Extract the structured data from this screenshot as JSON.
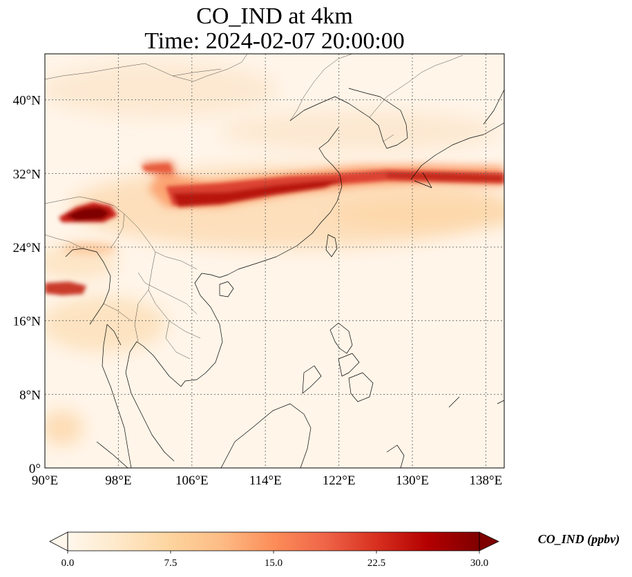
{
  "title": {
    "line1": "CO_IND at 4km",
    "line2": "Time: 2024-02-07 20:00:00"
  },
  "map": {
    "lon_range": [
      90,
      140
    ],
    "lat_range": [
      0,
      45
    ],
    "lon_ticks": [
      "90°E",
      "98°E",
      "106°E",
      "114°E",
      "122°E",
      "130°E",
      "138°E"
    ],
    "lat_ticks": [
      "0°",
      "8°N",
      "16°N",
      "24°N",
      "32°N",
      "40°N"
    ],
    "grid": true,
    "colormap": "OrRd"
  },
  "colorbar": {
    "title": "CO_IND (ppbv)",
    "ticks": [
      "0.0",
      "7.5",
      "15.0",
      "22.5",
      "30.0"
    ],
    "min": 0,
    "max": 30,
    "extend": "both",
    "colors": [
      "#fff7ec",
      "#fee8c8",
      "#fdd49e",
      "#fdbb84",
      "#fc8d59",
      "#ef6548",
      "#d7301f",
      "#b30000",
      "#7f0000"
    ]
  }
}
